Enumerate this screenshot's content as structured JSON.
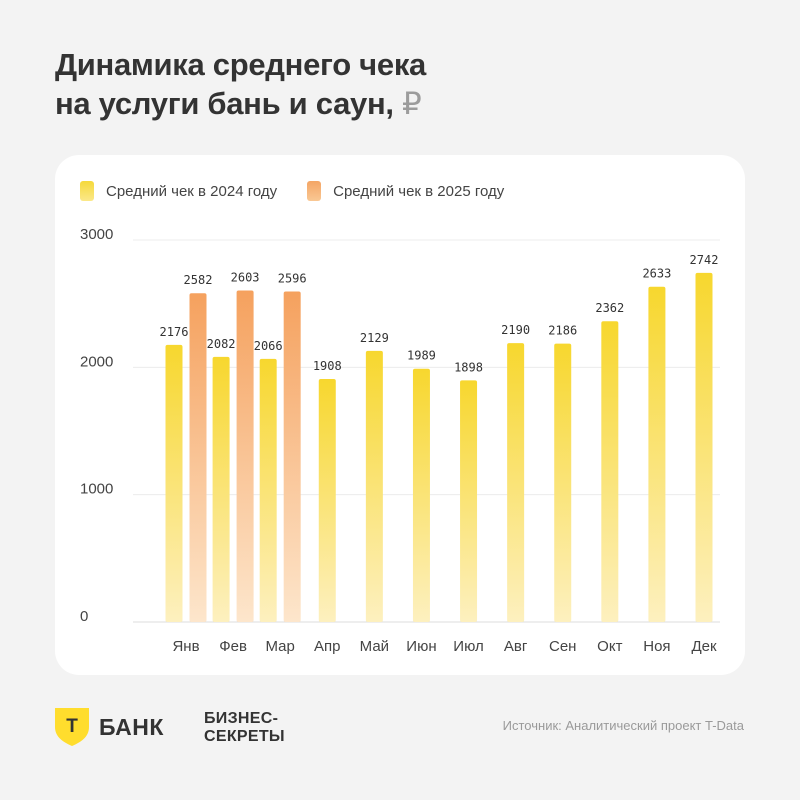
{
  "title": {
    "line1": "Динамика среднего чека",
    "line2": "на услуги бань и саун,",
    "currency": "₽"
  },
  "legend": [
    {
      "label": "Средний чек в 2024 году",
      "color": "#f5d93a"
    },
    {
      "label": "Средний чек в 2025 году",
      "color": "#f4a565"
    }
  ],
  "chart_data": {
    "type": "bar",
    "title": "Динамика среднего чека на услуги бань и саун, ₽",
    "xlabel": "",
    "ylabel": "",
    "ylim": [
      0,
      3000
    ],
    "yticks": [
      0,
      1000,
      2000,
      3000
    ],
    "grid": true,
    "legend_position": "top-left",
    "categories": [
      "Янв",
      "Фев",
      "Мар",
      "Апр",
      "Май",
      "Июн",
      "Июл",
      "Авг",
      "Сен",
      "Окт",
      "Ноя",
      "Дек"
    ],
    "series": [
      {
        "name": "Средний чек в 2024 году",
        "color": "#f5d93a",
        "values": [
          2176,
          2082,
          2066,
          1908,
          2129,
          1989,
          1898,
          2190,
          2186,
          2362,
          2633,
          2742
        ]
      },
      {
        "name": "Средний чек в 2025 году",
        "color": "#f4a565",
        "values": [
          2582,
          2603,
          2596,
          null,
          null,
          null,
          null,
          null,
          null,
          null,
          null,
          null
        ]
      }
    ]
  },
  "footer": {
    "brand_letter": "Т",
    "brand_name": "БАНК",
    "partner_line1": "БИЗНЕС-",
    "partner_line2": "СЕКРЕТЫ",
    "source": "Источник: Аналитический проект T-Data"
  },
  "colors": {
    "background": "#f3f3f3",
    "card": "#ffffff",
    "text": "#333333",
    "brand_yellow": "#ffdd2d"
  }
}
